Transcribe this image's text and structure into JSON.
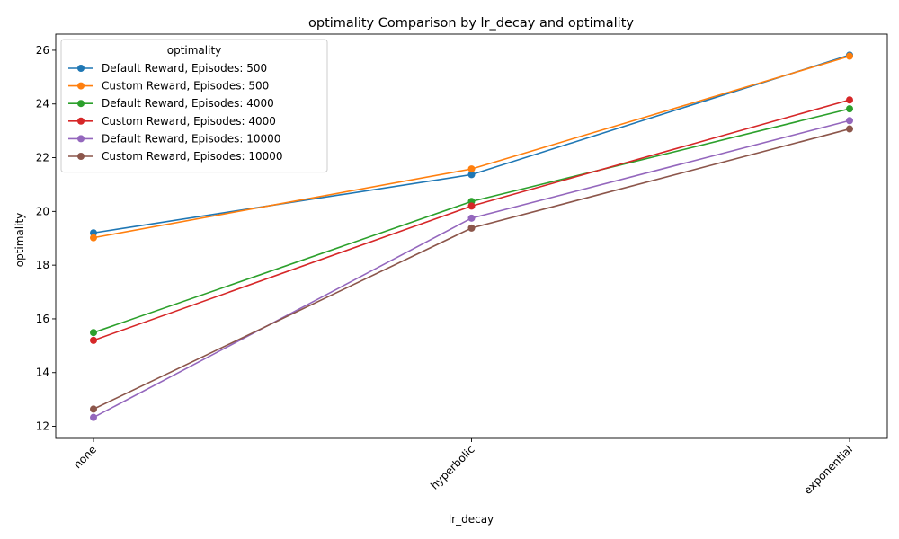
{
  "chart_data": {
    "type": "line",
    "title": "optimality Comparison by lr_decay and optimality",
    "xlabel": "lr_decay",
    "ylabel": "optimality",
    "categories": [
      "none",
      "hyperbolic",
      "exponential"
    ],
    "ylim": [
      11.55,
      26.6
    ],
    "yticks": [
      12,
      14,
      16,
      18,
      20,
      22,
      24,
      26
    ],
    "legend_title": "optimality",
    "legend_position": "upper-left",
    "grid": false,
    "series": [
      {
        "name": "Default Reward, Episodes: 500",
        "color": "#1f77b4",
        "values": [
          19.2,
          21.37,
          25.82
        ]
      },
      {
        "name": "Custom Reward, Episodes: 500",
        "color": "#ff7f0e",
        "values": [
          19.02,
          21.58,
          25.78
        ]
      },
      {
        "name": "Default Reward, Episodes: 4000",
        "color": "#2ca02c",
        "values": [
          15.49,
          20.37,
          23.82
        ]
      },
      {
        "name": "Custom Reward, Episodes: 4000",
        "color": "#d62728",
        "values": [
          15.2,
          20.2,
          24.15
        ]
      },
      {
        "name": "Default Reward, Episodes: 10000",
        "color": "#9467bd",
        "values": [
          12.33,
          19.75,
          23.38
        ]
      },
      {
        "name": "Custom Reward, Episodes: 10000",
        "color": "#8c564b",
        "values": [
          12.64,
          19.38,
          23.07
        ]
      }
    ]
  }
}
